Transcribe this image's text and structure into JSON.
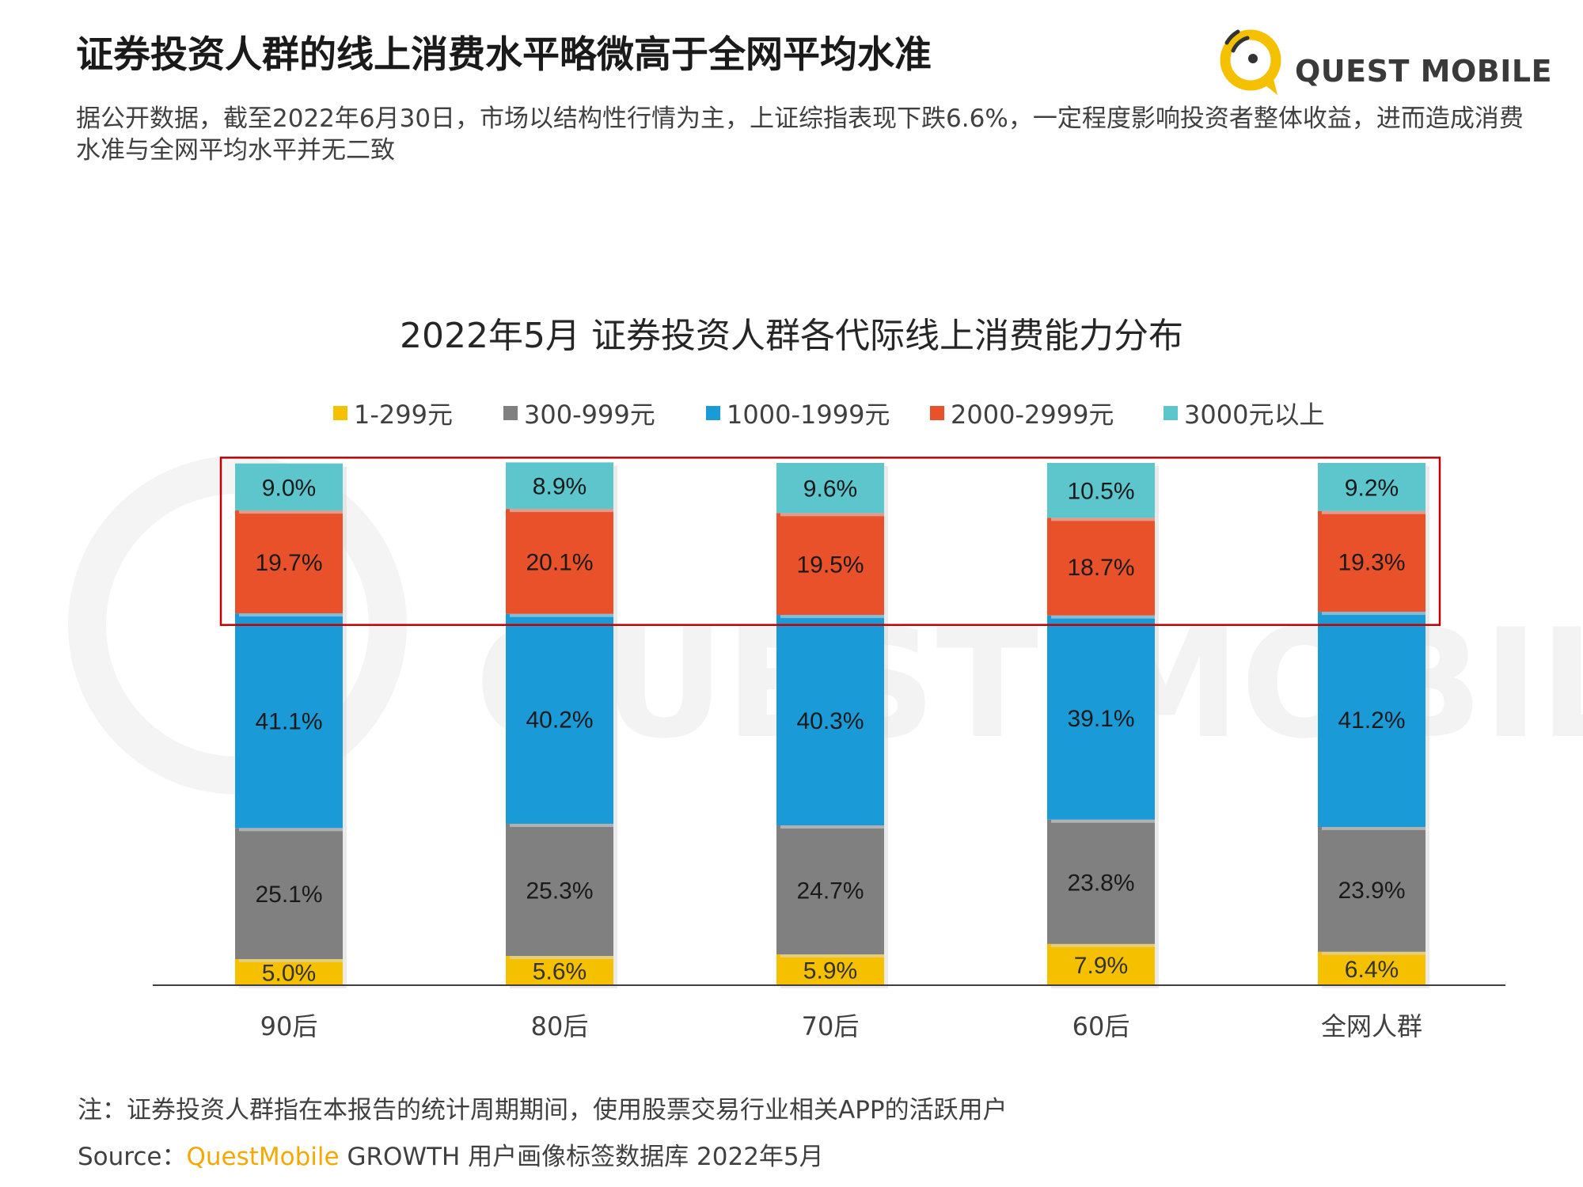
{
  "headline": "证券投资人群的线上消费水平略微高于全网平均水准",
  "subtitle": "据公开数据，截至2022年6月30日，市场以结构性行情为主，上证综指表现下跌6.6%，一定程度影响投资者整体收益，进而造成消费水准与全网平均水平并无二致",
  "logo": {
    "text": "QUEST MOBILE",
    "watermark": "QUEST MOBILE"
  },
  "colors": {
    "yellow": "#f5c000",
    "gray": "#808080",
    "blue": "#1a9bd7",
    "red": "#e8512a",
    "teal": "#5cc6cc",
    "highlight_border": "#c00000",
    "brand_orange": "#f5a800"
  },
  "chart_data": {
    "type": "bar",
    "stacked": true,
    "percent_stacked": true,
    "title": "2022年5月 证券投资人群各代际线上消费能力分布",
    "categories": [
      "90后",
      "80后",
      "70后",
      "60后",
      "全网人群"
    ],
    "series": [
      {
        "name": "1-299元",
        "color": "#f5c000",
        "values": [
          5.0,
          5.6,
          5.9,
          7.9,
          6.4
        ],
        "labels": [
          "5.0%",
          "5.6%",
          "5.9%",
          "7.9%",
          "6.4%"
        ]
      },
      {
        "name": "300-999元",
        "color": "#808080",
        "values": [
          25.1,
          25.3,
          24.7,
          23.8,
          23.9
        ],
        "labels": [
          "25.1%",
          "25.3%",
          "24.7%",
          "23.8%",
          "23.9%"
        ]
      },
      {
        "name": "1000-1999元",
        "color": "#1a9bd7",
        "values": [
          41.1,
          40.2,
          40.3,
          39.1,
          41.2
        ],
        "labels": [
          "41.1%",
          "40.2%",
          "40.3%",
          "39.1%",
          "41.2%"
        ]
      },
      {
        "name": "2000-2999元",
        "color": "#e8512a",
        "values": [
          19.7,
          20.1,
          19.5,
          18.7,
          19.3
        ],
        "labels": [
          "19.7%",
          "20.1%",
          "19.5%",
          "18.7%",
          "19.3%"
        ]
      },
      {
        "name": "3000元以上",
        "color": "#5cc6cc",
        "values": [
          9.0,
          8.9,
          9.6,
          10.5,
          9.2
        ],
        "labels": [
          "9.0%",
          "8.9%",
          "9.6%",
          "10.5%",
          "9.2%"
        ]
      }
    ],
    "ylim": [
      0,
      100
    ],
    "legend_position": "top",
    "grid": false,
    "highlight": "box around 2000-2999元 and 3000元以上 segments"
  },
  "note": "注：证券投资人群指在本报告的统计周期期间，使用股票交易行业相关APP的活跃用户",
  "source": {
    "prefix": "Source：",
    "brand": "QuestMobile",
    "rest": " GROWTH 用户画像标签数据库 2022年5月"
  }
}
